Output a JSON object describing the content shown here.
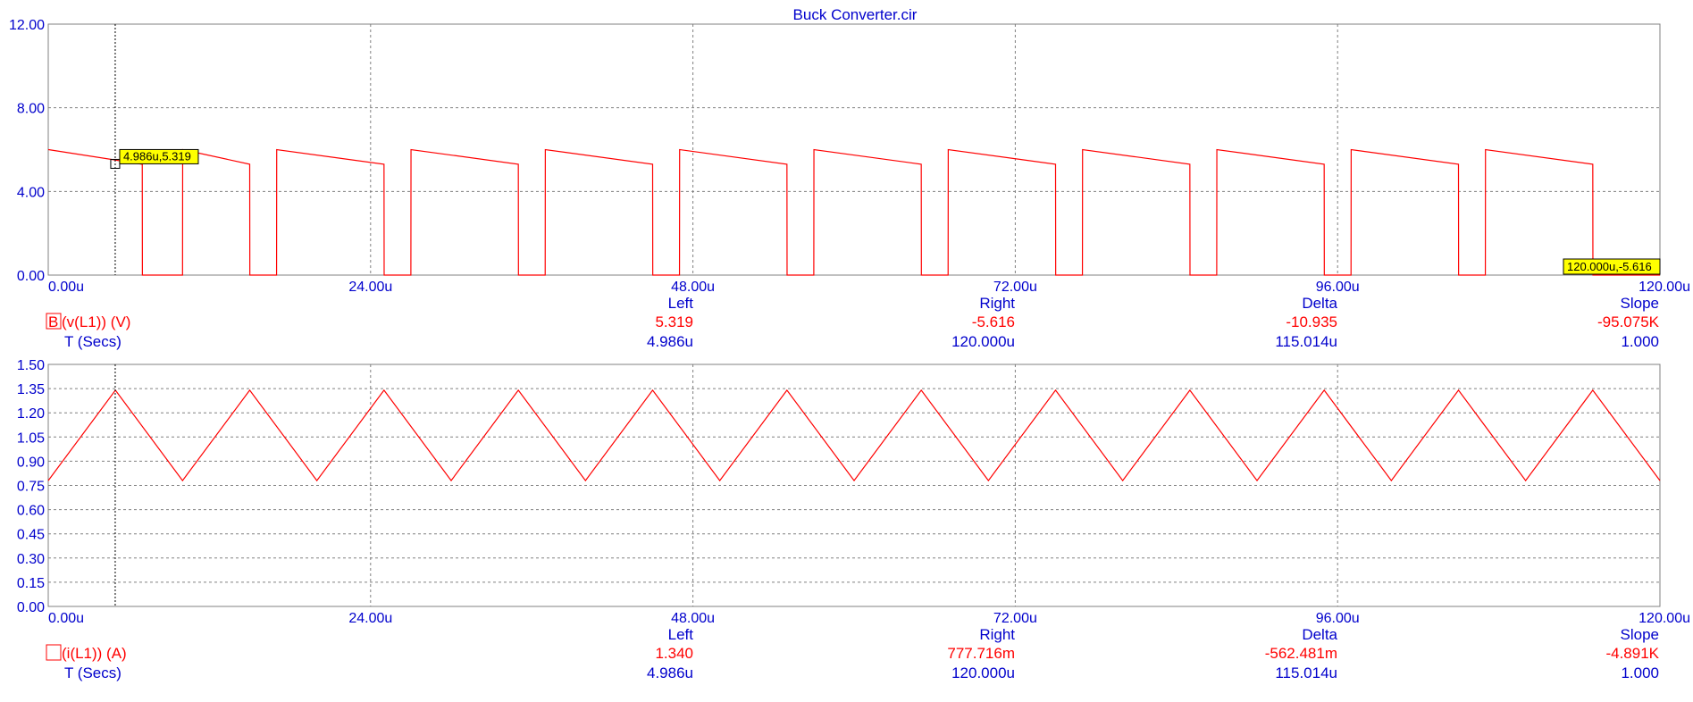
{
  "title": "Buck Converter.cir",
  "colors": {
    "axis_text": "#0000cc",
    "trace": "#ff0000",
    "grid": "#808080",
    "label_bg": "#ffff00"
  },
  "x_ticks": [
    "0.00u",
    "24.00u",
    "48.00u",
    "72.00u",
    "96.00u",
    "120.00u"
  ],
  "chart_data": [
    {
      "type": "line",
      "name": "v(L1) (V)",
      "x_unit": "us",
      "xlim": [
        0,
        120
      ],
      "ylim": [
        0,
        12
      ],
      "y_ticks": [
        "12.00",
        "8.00",
        "4.00",
        "0.00"
      ],
      "grid": true,
      "x": [
        0,
        0.01,
        7.0,
        7.01,
        10.0,
        10.01,
        15.0,
        15.01,
        17.0,
        17.01,
        25.0,
        25.01,
        27.0,
        27.01,
        35.0,
        35.01,
        37.0,
        37.01,
        45.0,
        45.01,
        47.0,
        47.01,
        55.0,
        55.01,
        57.0,
        57.01,
        65.0,
        65.01,
        67.0,
        67.01,
        75.0,
        75.01,
        77.0,
        77.01,
        85.0,
        85.01,
        87.0,
        87.01,
        95.0,
        95.01,
        97.0,
        97.01,
        105.0,
        105.01,
        107.0,
        107.01,
        115.0,
        115.01,
        120.0
      ],
      "y": [
        6.0,
        6.0,
        5.3,
        0.0,
        0.0,
        6.0,
        5.3,
        0.0,
        0.0,
        6.0,
        5.3,
        0.0,
        0.0,
        6.0,
        5.3,
        0.0,
        0.0,
        6.0,
        5.3,
        0.0,
        0.0,
        6.0,
        5.3,
        0.0,
        0.0,
        6.0,
        5.3,
        0.0,
        0.0,
        6.0,
        5.3,
        0.0,
        0.0,
        6.0,
        5.3,
        0.0,
        0.0,
        6.0,
        5.3,
        0.0,
        0.0,
        6.0,
        5.3,
        0.0,
        0.0,
        6.0,
        5.3,
        0.0,
        0.0
      ],
      "cursor_left": {
        "x": 4.986,
        "y": 5.319,
        "label": "4.986u,5.319"
      },
      "cursor_right": {
        "x": 120.0,
        "y": -5.616,
        "label": "120.000u,-5.616"
      },
      "readout": {
        "marker": "B",
        "expr": "(v(L1)) (V)",
        "xname": "T (Secs)",
        "headers": [
          "Left",
          "Right",
          "Delta",
          "Slope"
        ],
        "y_values": [
          "5.319",
          "-5.616",
          "-10.935",
          "-95.075K"
        ],
        "x_values": [
          "4.986u",
          "120.000u",
          "115.014u",
          "1.000"
        ]
      }
    },
    {
      "type": "line",
      "name": "i(L1) (A)",
      "x_unit": "us",
      "xlim": [
        0,
        120
      ],
      "ylim": [
        0,
        1.5
      ],
      "y_ticks": [
        "1.50",
        "1.35",
        "1.20",
        "1.05",
        "0.90",
        "0.75",
        "0.60",
        "0.45",
        "0.30",
        "0.15",
        "0.00"
      ],
      "grid": true,
      "x": [
        0,
        5,
        10,
        15,
        20,
        25,
        30,
        35,
        40,
        45,
        50,
        55,
        60,
        65,
        70,
        75,
        80,
        85,
        90,
        95,
        100,
        105,
        110,
        115,
        120
      ],
      "y": [
        0.78,
        1.34,
        0.78,
        1.34,
        0.78,
        1.34,
        0.78,
        1.34,
        0.78,
        1.34,
        0.78,
        1.34,
        0.78,
        1.34,
        0.78,
        1.34,
        0.78,
        1.34,
        0.78,
        1.34,
        0.78,
        1.34,
        0.78,
        1.34,
        0.78
      ],
      "readout": {
        "marker": "",
        "expr": "(i(L1)) (A)",
        "xname": "T (Secs)",
        "headers": [
          "Left",
          "Right",
          "Delta",
          "Slope"
        ],
        "y_values": [
          "1.340",
          "777.716m",
          "-562.481m",
          "-4.891K"
        ],
        "x_values": [
          "4.986u",
          "120.000u",
          "115.014u",
          "1.000"
        ]
      }
    }
  ]
}
